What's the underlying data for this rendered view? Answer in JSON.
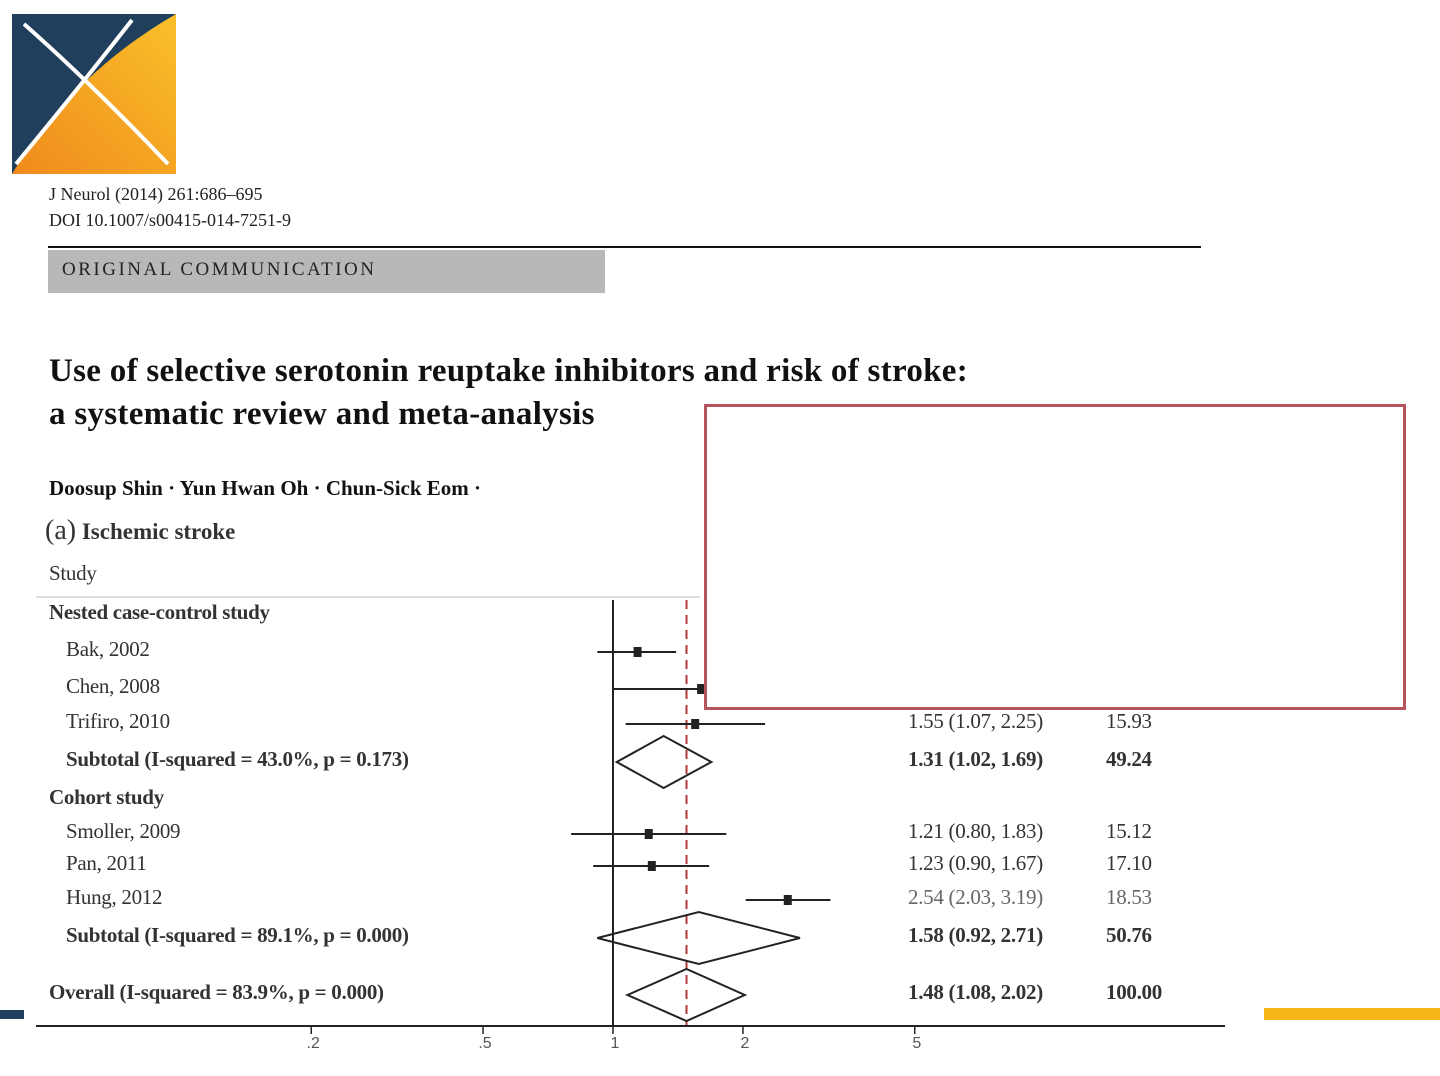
{
  "header": {
    "journal_line": "J Neurol (2014) 261:686–695",
    "doi_line": "DOI 10.1007/s00415-014-7251-9",
    "section": "ORIGINAL COMMUNICATION"
  },
  "paper": {
    "title_line1": "Use of selective serotonin reuptake inhibitors and risk of stroke:",
    "title_line2": "a systematic review and meta-analysis",
    "authors": "Doosup Shin · Yun Hwan Oh · Chun-Sick Eom ·"
  },
  "figure": {
    "panel_letter": "(a)",
    "panel_title": "Ischemic stroke",
    "study_header": "Study"
  },
  "colors": {
    "logo_navy": "#1f3f5c",
    "logo_orange": "#f7a21b",
    "highlight_box": "#b5545c",
    "reference_line": "#b03a3a"
  },
  "chart_data": {
    "type": "forest",
    "scale": "log",
    "x_ticks": [
      ".2",
      ".5",
      "1",
      "2",
      "5"
    ],
    "tick_values": [
      0.2,
      0.5,
      1,
      2,
      5
    ],
    "reference_line": 1.48,
    "rows": [
      {
        "label": "Nested case-control study",
        "kind": "group"
      },
      {
        "label": "Bak, 2002",
        "kind": "study",
        "or": 1.14,
        "lo": 0.92,
        "hi": 1.4
      },
      {
        "label": "Chen, 2008",
        "kind": "study",
        "or": 1.6,
        "lo": 1.0,
        "hi": 2.55
      },
      {
        "label": "Trifiro, 2010",
        "kind": "study",
        "or": 1.55,
        "lo": 1.07,
        "hi": 2.25,
        "text": "1.55 (1.07, 2.25)",
        "weight": "15.93"
      },
      {
        "label": "Subtotal  (I-squared = 43.0%, p = 0.173)",
        "kind": "subtotal",
        "or": 1.31,
        "lo": 1.02,
        "hi": 1.69,
        "text": "1.31 (1.02, 1.69)",
        "weight": "49.24"
      },
      {
        "label": "Cohort study",
        "kind": "group"
      },
      {
        "label": "Smoller, 2009",
        "kind": "study",
        "or": 1.21,
        "lo": 0.8,
        "hi": 1.83,
        "text": "1.21 (0.80, 1.83)",
        "weight": "15.12"
      },
      {
        "label": "Pan, 2011",
        "kind": "study",
        "or": 1.23,
        "lo": 0.9,
        "hi": 1.67,
        "text": "1.23 (0.90, 1.67)",
        "weight": "17.10"
      },
      {
        "label": "Hung, 2012",
        "kind": "study",
        "or": 2.54,
        "lo": 2.03,
        "hi": 3.19,
        "text": "2.54 (2.03, 3.19)",
        "weight": "18.53"
      },
      {
        "label": "Subtotal  (I-squared = 89.1%, p = 0.000)",
        "kind": "subtotal",
        "or": 1.58,
        "lo": 0.92,
        "hi": 2.71,
        "text": "1.58 (0.92, 2.71)",
        "weight": "50.76"
      },
      {
        "label": "Overall  (I-squared = 83.9%, p = 0.000)",
        "kind": "overall",
        "or": 1.48,
        "lo": 1.08,
        "hi": 2.02,
        "text": "1.48 (1.08, 2.02)",
        "weight": "100.00"
      }
    ]
  }
}
